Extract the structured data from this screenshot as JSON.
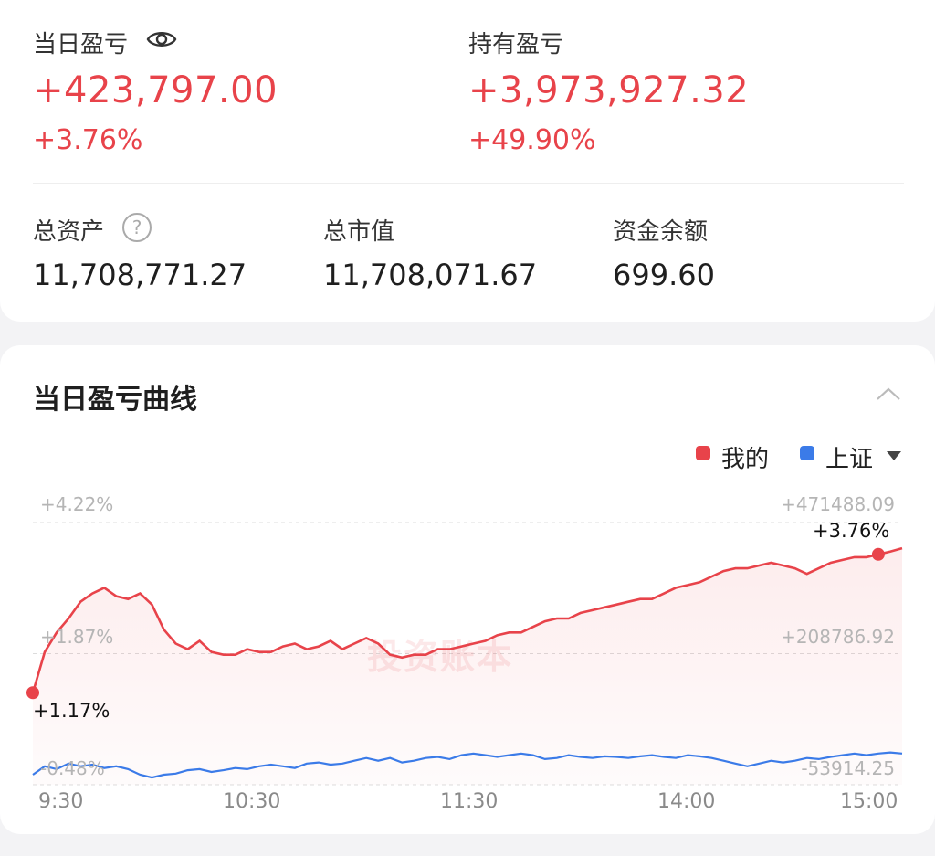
{
  "summary": {
    "daily_pl_label": "当日盈亏",
    "daily_pl_value": "+423,797.00",
    "daily_pl_pct": "+3.76%",
    "holding_pl_label": "持有盈亏",
    "holding_pl_value": "+3,973,927.32",
    "holding_pl_pct": "+49.90%"
  },
  "assets": {
    "total_assets_label": "总资产",
    "total_assets_value": "11,708,771.27",
    "market_value_label": "总市值",
    "market_value_value": "11,708,071.67",
    "cash_label": "资金余额",
    "cash_value": "699.60"
  },
  "curve_card": {
    "title": "当日盈亏曲线",
    "legend": [
      {
        "name": "我的",
        "color": "#e8434a"
      },
      {
        "name": "上证",
        "color": "#3b7be8"
      }
    ],
    "watermark": "投资账本",
    "start_label": "+1.17%",
    "end_label": "+3.76%"
  },
  "colors": {
    "accent_red": "#e8434a",
    "accent_blue": "#3b7be8"
  },
  "chart_data": {
    "type": "line",
    "x_ticks": [
      "9:30",
      "10:30",
      "11:30",
      "14:00",
      "15:00"
    ],
    "left_axis_labels": [
      "+4.22%",
      "+1.87%",
      "-0.48%"
    ],
    "right_axis_labels": [
      "+471488.09",
      "+208786.92",
      "-53914.25"
    ],
    "ylim_pct": [
      -0.48,
      4.22
    ],
    "series": [
      {
        "name": "我的",
        "color": "#e8434a",
        "values_pct": [
          1.17,
          1.9,
          2.25,
          2.5,
          2.8,
          2.95,
          3.05,
          2.9,
          2.85,
          2.95,
          2.75,
          2.3,
          2.05,
          1.95,
          2.1,
          1.9,
          1.85,
          1.85,
          1.95,
          1.9,
          1.9,
          2.0,
          2.05,
          1.95,
          2.0,
          2.1,
          1.95,
          2.05,
          2.15,
          2.05,
          1.85,
          1.8,
          1.85,
          1.85,
          1.95,
          1.95,
          2.0,
          2.05,
          2.1,
          2.2,
          2.25,
          2.25,
          2.35,
          2.45,
          2.5,
          2.5,
          2.6,
          2.65,
          2.7,
          2.75,
          2.8,
          2.85,
          2.85,
          2.95,
          3.05,
          3.1,
          3.15,
          3.25,
          3.35,
          3.4,
          3.4,
          3.45,
          3.5,
          3.45,
          3.4,
          3.3,
          3.4,
          3.5,
          3.55,
          3.6,
          3.6,
          3.65,
          3.7,
          3.76
        ]
      },
      {
        "name": "上证",
        "values_pct": [
          -0.3,
          -0.15,
          -0.2,
          -0.1,
          -0.15,
          -0.12,
          -0.18,
          -0.15,
          -0.2,
          -0.3,
          -0.35,
          -0.3,
          -0.28,
          -0.22,
          -0.2,
          -0.25,
          -0.22,
          -0.18,
          -0.2,
          -0.15,
          -0.12,
          -0.15,
          -0.18,
          -0.1,
          -0.08,
          -0.12,
          -0.1,
          -0.05,
          0.0,
          -0.05,
          0.0,
          -0.08,
          -0.05,
          0.0,
          0.02,
          -0.02,
          0.05,
          0.08,
          0.05,
          0.02,
          0.05,
          0.08,
          0.05,
          -0.02,
          0.0,
          0.05,
          0.02,
          0.0,
          0.03,
          0.02,
          0.0,
          0.03,
          0.05,
          0.02,
          0.0,
          0.05,
          0.03,
          0.0,
          -0.05,
          -0.1,
          -0.15,
          -0.1,
          -0.05,
          -0.08,
          -0.05,
          0.0,
          -0.02,
          0.02,
          0.05,
          0.08,
          0.05,
          0.08,
          0.1,
          0.08
        ]
      }
    ]
  }
}
